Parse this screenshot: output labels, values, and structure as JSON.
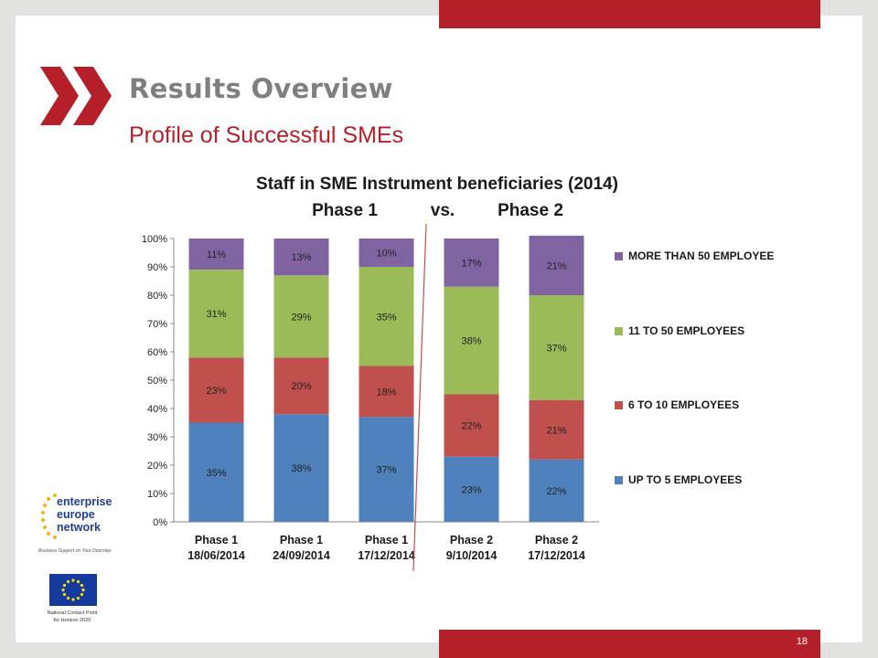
{
  "slide": {
    "title": "Results Overview",
    "subtitle": "Profile of Successful SMEs",
    "page_number": "18",
    "colors": {
      "accent_red": "#b51f2a",
      "title_gray": "#7f7f7f",
      "background": "#e2e2de"
    }
  },
  "logos": {
    "een_lines": [
      "enterprise",
      "europe",
      "network"
    ],
    "een_tagline": "Business Support on Your Doorstep",
    "eu_caption_lines": [
      "National Contact Point",
      "for Horizon 2020"
    ]
  },
  "chart_data": {
    "type": "bar",
    "stacked": true,
    "title_line1": "Staff in SME Instrument beneficiaries (2014)",
    "title_line2_left": "Phase 1",
    "title_line2_mid": "vs.",
    "title_line2_right": "Phase 2",
    "categories": [
      [
        "Phase 1",
        "18/06/2014"
      ],
      [
        "Phase 1",
        "24/09/2014"
      ],
      [
        "Phase 1",
        "17/12/2014"
      ],
      [
        "Phase 2",
        "9/10/2014"
      ],
      [
        "Phase 2",
        "17/12/2014"
      ]
    ],
    "series": [
      {
        "name": "UP TO 5 EMPLOYEES",
        "color": "#4f81bd",
        "values": [
          35,
          38,
          37,
          23,
          22
        ]
      },
      {
        "name": "6 TO 10 EMPLOYEES",
        "color": "#c0504d",
        "values": [
          23,
          20,
          18,
          22,
          21
        ]
      },
      {
        "name": "11 TO 50 EMPLOYEES",
        "color": "#9bbb59",
        "values": [
          31,
          29,
          35,
          38,
          37
        ]
      },
      {
        "name": "MORE THAN 50 EMPLOYEE",
        "color": "#8064a2",
        "values": [
          11,
          13,
          10,
          17,
          21
        ]
      }
    ],
    "value_suffix": "%",
    "y_ticks": [
      "0%",
      "10%",
      "20%",
      "30%",
      "40%",
      "50%",
      "60%",
      "70%",
      "80%",
      "90%",
      "100%"
    ],
    "ylim": [
      0,
      100
    ],
    "legend_position": "right",
    "divider": "between Phase 1 and Phase 2 columns",
    "divider_color": "#c0504d",
    "grid": false
  }
}
